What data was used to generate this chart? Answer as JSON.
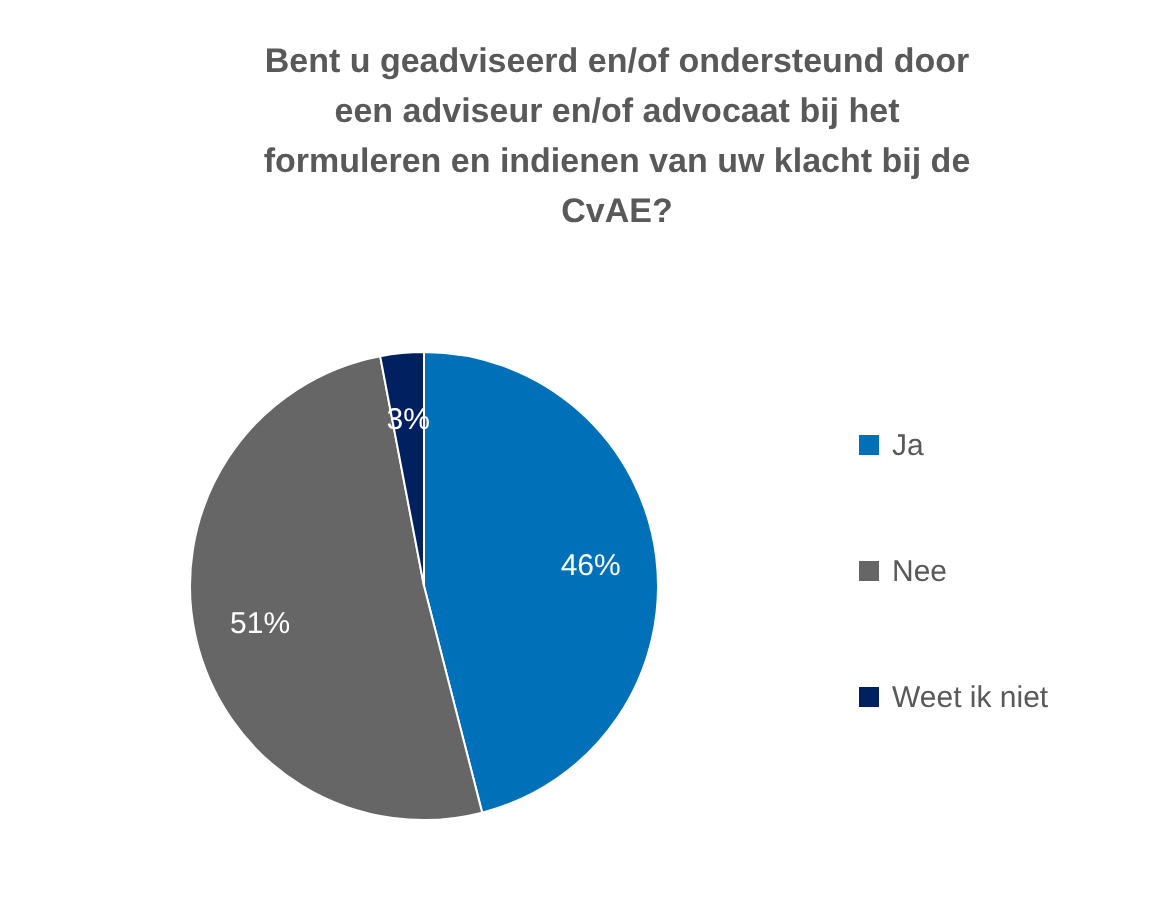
{
  "chart_data": {
    "type": "pie",
    "title": "Bent u geadviseerd en/of ondersteund door een adviseur en/of advocaat bij het formuleren en indienen van uw klacht bij de CvAE?",
    "categories": [
      "Ja",
      "Nee",
      "Weet ik niet"
    ],
    "values": [
      46,
      51,
      3
    ],
    "colors": [
      "#0070b8",
      "#666666",
      "#002060"
    ],
    "value_labels": [
      "46%",
      "51%",
      "3%"
    ],
    "legend": "right"
  }
}
